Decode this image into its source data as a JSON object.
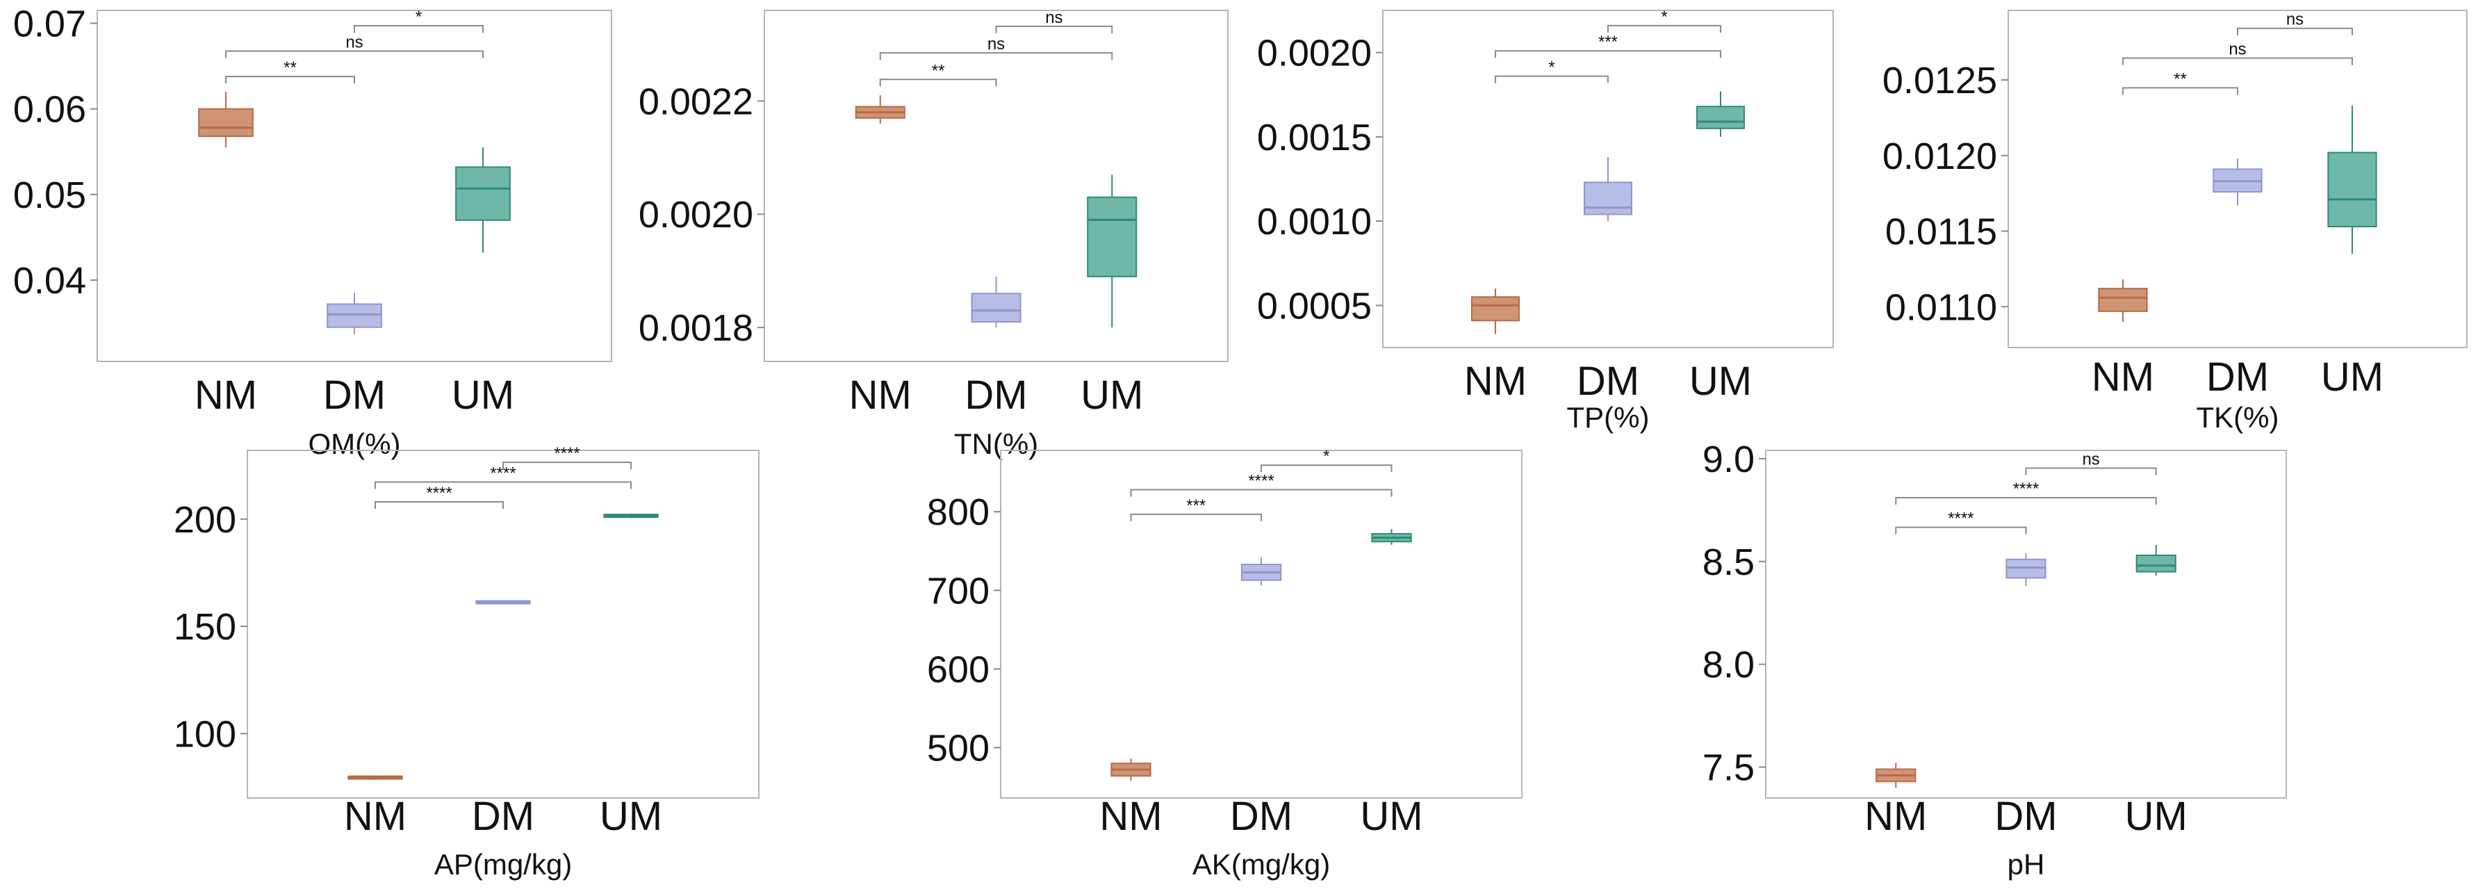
{
  "palette": {
    "NM": "#cf9473",
    "DM": "#b8bde6",
    "UM": "#6fb8a7",
    "NM_line": "#b86a47",
    "DM_line": "#8f95cf",
    "UM_line": "#2f8a78"
  },
  "chart_data": [
    {
      "type": "box",
      "xlabel": "OM(%)",
      "categories": [
        "NM",
        "DM",
        "UM"
      ],
      "ylim": [
        0.0305,
        0.0715
      ],
      "yticks": [
        0.04,
        0.05,
        0.06,
        0.07
      ],
      "ytick_labels": [
        "0.04",
        "0.05",
        "0.06",
        "0.07"
      ],
      "boxes": [
        {
          "min": 0.0555,
          "q1": 0.0568,
          "median": 0.0578,
          "q3": 0.06,
          "max": 0.062
        },
        {
          "min": 0.0337,
          "q1": 0.0345,
          "median": 0.036,
          "q3": 0.0372,
          "max": 0.0385
        },
        {
          "min": 0.0432,
          "q1": 0.047,
          "median": 0.0507,
          "q3": 0.0532,
          "max": 0.0555
        }
      ],
      "significance": [
        {
          "from": "NM",
          "to": "DM",
          "label": "**"
        },
        {
          "from": "NM",
          "to": "UM",
          "label": "ns"
        },
        {
          "from": "DM",
          "to": "UM",
          "label": "*"
        }
      ]
    },
    {
      "type": "box",
      "xlabel": "TN(%)",
      "categories": [
        "NM",
        "DM",
        "UM"
      ],
      "ylim": [
        0.00174,
        0.00236
      ],
      "yticks": [
        0.0018,
        0.002,
        0.0022
      ],
      "ytick_labels": [
        "0.0018",
        "0.0020",
        "0.0022"
      ],
      "boxes": [
        {
          "min": 0.00216,
          "q1": 0.00217,
          "median": 0.00218,
          "q3": 0.00219,
          "max": 0.00221
        },
        {
          "min": 0.0018,
          "q1": 0.00181,
          "median": 0.00183,
          "q3": 0.00186,
          "max": 0.00189
        },
        {
          "min": 0.0018,
          "q1": 0.00189,
          "median": 0.00199,
          "q3": 0.00203,
          "max": 0.00207
        }
      ],
      "significance": [
        {
          "from": "NM",
          "to": "DM",
          "label": "**"
        },
        {
          "from": "NM",
          "to": "UM",
          "label": "ns"
        },
        {
          "from": "DM",
          "to": "UM",
          "label": "ns"
        }
      ]
    },
    {
      "type": "box",
      "xlabel": "TP(%)",
      "categories": [
        "NM",
        "DM",
        "UM"
      ],
      "ylim": [
        0.00025,
        0.00225
      ],
      "yticks": [
        0.0005,
        0.001,
        0.0015,
        0.002
      ],
      "ytick_labels": [
        "0.0005",
        "0.0010",
        "0.0015",
        "0.0020"
      ],
      "boxes": [
        {
          "min": 0.00033,
          "q1": 0.00041,
          "median": 0.0005,
          "q3": 0.00055,
          "max": 0.0006
        },
        {
          "min": 0.001,
          "q1": 0.00104,
          "median": 0.00108,
          "q3": 0.00123,
          "max": 0.00138
        },
        {
          "min": 0.0015,
          "q1": 0.00155,
          "median": 0.00159,
          "q3": 0.00168,
          "max": 0.00177
        }
      ],
      "significance": [
        {
          "from": "NM",
          "to": "DM",
          "label": "*"
        },
        {
          "from": "NM",
          "to": "UM",
          "label": "***"
        },
        {
          "from": "DM",
          "to": "UM",
          "label": "*"
        }
      ]
    },
    {
      "type": "box",
      "xlabel": "TK(%)",
      "categories": [
        "NM",
        "DM",
        "UM"
      ],
      "ylim": [
        0.01073,
        0.01296
      ],
      "yticks": [
        0.011,
        0.0115,
        0.012,
        0.0125
      ],
      "ytick_labels": [
        "0.0110",
        "0.0115",
        "0.0120",
        "0.0125"
      ],
      "boxes": [
        {
          "min": 0.0109,
          "q1": 0.01097,
          "median": 0.01106,
          "q3": 0.01112,
          "max": 0.01118
        },
        {
          "min": 0.01167,
          "q1": 0.01176,
          "median": 0.01183,
          "q3": 0.01191,
          "max": 0.01198
        },
        {
          "min": 0.01135,
          "q1": 0.01153,
          "median": 0.01171,
          "q3": 0.01202,
          "max": 0.01233
        }
      ],
      "significance": [
        {
          "from": "NM",
          "to": "DM",
          "label": "**"
        },
        {
          "from": "NM",
          "to": "UM",
          "label": "ns"
        },
        {
          "from": "DM",
          "to": "UM",
          "label": "ns"
        }
      ]
    },
    {
      "type": "box",
      "xlabel": "AP(mg/kg)",
      "categories": [
        "NM",
        "DM",
        "UM"
      ],
      "ylim": [
        70,
        232
      ],
      "yticks": [
        100,
        150,
        200
      ],
      "ytick_labels": [
        "100",
        "150",
        "200"
      ],
      "boxes": [
        {
          "min": 78.5,
          "q1": 79.0,
          "median": 79.5,
          "q3": 80.0,
          "max": 80.5
        },
        {
          "min": 160.6,
          "q1": 160.9,
          "median": 161.2,
          "q3": 161.5,
          "max": 161.8
        },
        {
          "min": 200.5,
          "q1": 201.0,
          "median": 201.5,
          "q3": 202.0,
          "max": 202.5
        }
      ],
      "significance": [
        {
          "from": "NM",
          "to": "DM",
          "label": "****"
        },
        {
          "from": "NM",
          "to": "UM",
          "label": "****"
        },
        {
          "from": "DM",
          "to": "UM",
          "label": "****"
        }
      ]
    },
    {
      "type": "box",
      "xlabel": "AK(mg/kg)",
      "categories": [
        "NM",
        "DM",
        "UM"
      ],
      "ylim": [
        436,
        878
      ],
      "yticks": [
        500,
        600,
        700,
        800
      ],
      "ytick_labels": [
        "500",
        "600",
        "700",
        "800"
      ],
      "boxes": [
        {
          "min": 458,
          "q1": 464,
          "median": 472,
          "q3": 480,
          "max": 486
        },
        {
          "min": 706,
          "q1": 713,
          "median": 723,
          "q3": 733,
          "max": 742
        },
        {
          "min": 758,
          "q1": 762,
          "median": 767,
          "q3": 772,
          "max": 778
        }
      ],
      "significance": [
        {
          "from": "NM",
          "to": "DM",
          "label": "***"
        },
        {
          "from": "NM",
          "to": "UM",
          "label": "****"
        },
        {
          "from": "DM",
          "to": "UM",
          "label": "*"
        }
      ]
    },
    {
      "type": "box",
      "xlabel": "pH",
      "categories": [
        "NM",
        "DM",
        "UM"
      ],
      "ylim": [
        7.35,
        9.04
      ],
      "yticks": [
        7.5,
        8.0,
        8.5,
        9.0
      ],
      "ytick_labels": [
        "7.5",
        "8.0",
        "8.5",
        "9.0"
      ],
      "boxes": [
        {
          "min": 7.4,
          "q1": 7.43,
          "median": 7.46,
          "q3": 7.49,
          "max": 7.52
        },
        {
          "min": 8.38,
          "q1": 8.42,
          "median": 8.47,
          "q3": 8.51,
          "max": 8.54
        },
        {
          "min": 8.43,
          "q1": 8.45,
          "median": 8.48,
          "q3": 8.53,
          "max": 8.58
        }
      ],
      "significance": [
        {
          "from": "NM",
          "to": "DM",
          "label": "****"
        },
        {
          "from": "NM",
          "to": "UM",
          "label": "****"
        },
        {
          "from": "DM",
          "to": "UM",
          "label": "ns"
        }
      ]
    }
  ]
}
